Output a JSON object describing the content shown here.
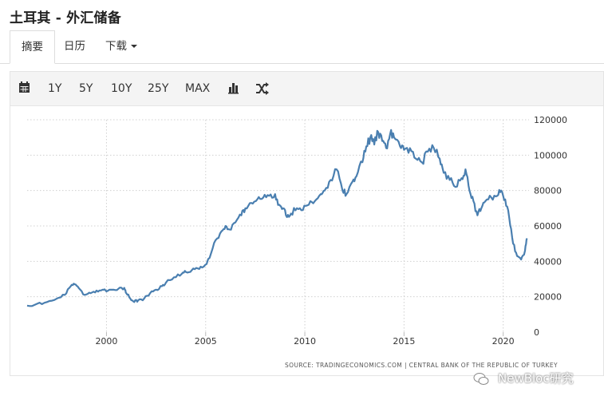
{
  "title": "土耳其 - 外汇储备",
  "tabs": [
    {
      "label": "摘要",
      "active": true
    },
    {
      "label": "日历",
      "active": false
    },
    {
      "label": "下载",
      "active": false,
      "dropdown": true
    }
  ],
  "toolbar": {
    "calendar_icon": "calendar-icon",
    "ranges": [
      "1Y",
      "5Y",
      "10Y",
      "25Y",
      "MAX"
    ],
    "bar_chart_icon": "bar-chart-icon",
    "shuffle_icon": "shuffle-icon"
  },
  "colors": {
    "line": "#4a7fb0",
    "grid": "#d0d0d0",
    "axis_text": "#333333"
  },
  "source_note": "SOURCE: TRADINGECONOMICS.COM | CENTRAL BANK OF THE REPUBLIC OF TURKEY",
  "watermark": "NewBloc研究",
  "chart_data": {
    "type": "line",
    "title": "",
    "xlabel": "",
    "ylabel": "",
    "xlim": [
      1996,
      2021.3
    ],
    "ylim": [
      0,
      120000
    ],
    "x_ticks": [
      2000,
      2005,
      2010,
      2015,
      2020
    ],
    "y_ticks": [
      0,
      20000,
      40000,
      60000,
      80000,
      100000,
      120000
    ],
    "y_axis_side": "right",
    "grid": true,
    "x": [
      1996.0,
      1996.5,
      1997.0,
      1997.5,
      1997.9,
      1998.2,
      1998.4,
      1998.6,
      1998.9,
      1999.2,
      1999.5,
      1999.8,
      2000.0,
      2000.3,
      2000.6,
      2000.9,
      2001.0,
      2001.2,
      2001.4,
      2001.6,
      2001.9,
      2002.2,
      2002.5,
      2002.8,
      2003.0,
      2003.4,
      2003.8,
      2004.0,
      2004.3,
      2004.6,
      2004.9,
      2005.2,
      2005.5,
      2005.8,
      2006.0,
      2006.2,
      2006.5,
      2006.8,
      2007.0,
      2007.3,
      2007.6,
      2007.9,
      2008.2,
      2008.5,
      2008.7,
      2008.9,
      2009.1,
      2009.3,
      2009.6,
      2009.9,
      2010.2,
      2010.5,
      2010.8,
      2011.0,
      2011.3,
      2011.6,
      2011.9,
      2012.1,
      2012.4,
      2012.6,
      2012.9,
      2013.1,
      2013.3,
      2013.5,
      2013.7,
      2013.9,
      2014.1,
      2014.3,
      2014.5,
      2014.8,
      2015.0,
      2015.3,
      2015.6,
      2015.9,
      2016.2,
      2016.5,
      2016.8,
      2017.0,
      2017.3,
      2017.6,
      2017.9,
      2018.1,
      2018.3,
      2018.5,
      2018.7,
      2018.9,
      2019.1,
      2019.4,
      2019.7,
      2019.9,
      2020.1,
      2020.3,
      2020.5,
      2020.7,
      2020.9,
      2021.1,
      2021.2
    ],
    "y": [
      15000,
      16000,
      17000,
      19000,
      21000,
      26000,
      27000,
      25000,
      21000,
      22000,
      23500,
      24000,
      23000,
      24000,
      24500,
      25000,
      22000,
      19000,
      17000,
      18000,
      19000,
      22000,
      24000,
      26000,
      28000,
      31000,
      33000,
      34000,
      35000,
      36000,
      37000,
      42000,
      52000,
      57000,
      60000,
      58000,
      62000,
      66000,
      70000,
      73000,
      75000,
      76000,
      77000,
      78000,
      72000,
      70000,
      65000,
      67000,
      70000,
      69000,
      72000,
      74000,
      78000,
      80000,
      86000,
      92000,
      80000,
      78000,
      85000,
      88000,
      96000,
      105000,
      110000,
      106000,
      113000,
      108000,
      104000,
      112000,
      110000,
      105000,
      103000,
      104000,
      98000,
      96000,
      102000,
      104000,
      98000,
      90000,
      86000,
      82000,
      87000,
      92000,
      80000,
      74000,
      66000,
      70000,
      74000,
      76000,
      77000,
      80000,
      75000,
      65000,
      50000,
      43000,
      41000,
      46000,
      53000
    ]
  }
}
